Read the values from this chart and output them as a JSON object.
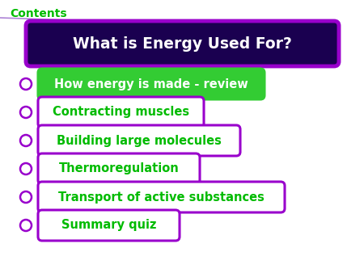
{
  "title": "What is Energy Used For?",
  "title_bg": "#1a0050",
  "title_border": "#9900cc",
  "title_text_color": "#ffffff",
  "contents_label": "Contents",
  "contents_color": "#00bb00",
  "bg_color": "#ffffff",
  "bullet_color": "#9900cc",
  "items": [
    {
      "text": "How energy is made - review",
      "bg": "#33cc33",
      "border": "#33cc33",
      "text_color": "#ffffff"
    },
    {
      "text": "Contracting muscles",
      "bg": "#ffffff",
      "border": "#9900cc",
      "text_color": "#00bb00"
    },
    {
      "text": "Building large molecules",
      "bg": "#ffffff",
      "border": "#9900cc",
      "text_color": "#00bb00"
    },
    {
      "text": "Thermoregulation",
      "bg": "#ffffff",
      "border": "#9900cc",
      "text_color": "#00bb00"
    },
    {
      "text": "Transport of active substances",
      "bg": "#ffffff",
      "border": "#9900cc",
      "text_color": "#00bb00"
    },
    {
      "text": "Summary quiz",
      "bg": "#ffffff",
      "border": "#9900cc",
      "text_color": "#00bb00"
    }
  ],
  "line_color": "#9966cc",
  "figsize": [
    4.5,
    3.38
  ],
  "dpi": 100
}
